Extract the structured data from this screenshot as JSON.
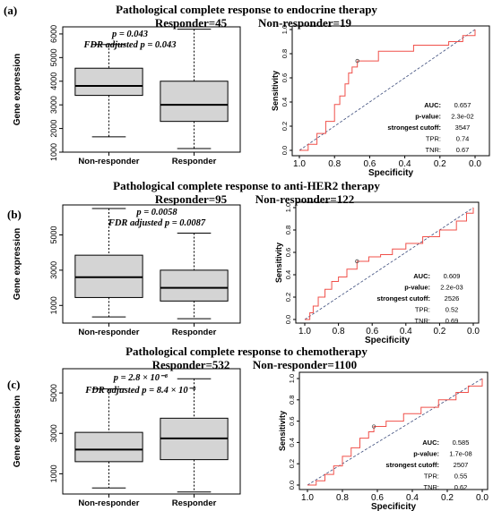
{
  "chart_data": [
    {
      "panel": "(a)",
      "title": "Pathological complete response to endocrine therapy",
      "subtitle_left": "Responder=45",
      "subtitle_right": "Non-responder=19",
      "boxplot": {
        "type": "box",
        "ylabel": "Gene expression",
        "categories": [
          "Non-responder",
          "Responder"
        ],
        "yticks": [
          1000,
          2000,
          3000,
          4000,
          5000,
          6000
        ],
        "ylim": [
          1000,
          6300
        ],
        "boxes": [
          {
            "min": 1650,
            "q1": 3400,
            "median": 3800,
            "q3": 4550,
            "max": 5550
          },
          {
            "min": 1150,
            "q1": 2300,
            "median": 3000,
            "q3": 4000,
            "max": 6200
          }
        ],
        "annotation_p": "p = 0.043",
        "annotation_fdr": "FDR adjusted p = 0.043"
      },
      "roc": {
        "type": "line",
        "xlabel": "Specificity",
        "ylabel": "Sensitivity",
        "xticks": [
          "1.0",
          "0.8",
          "0.6",
          "0.4",
          "0.2",
          "0.0"
        ],
        "yticks": [
          "0.0",
          "0.2",
          "0.4",
          "0.6",
          "0.8",
          "1.0"
        ],
        "xlim": [
          1.0,
          0.0
        ],
        "ylim": [
          0.0,
          1.0
        ],
        "curve": [
          [
            1.0,
            0.0
          ],
          [
            0.95,
            0.05
          ],
          [
            0.9,
            0.14
          ],
          [
            0.85,
            0.24
          ],
          [
            0.8,
            0.38
          ],
          [
            0.77,
            0.45
          ],
          [
            0.74,
            0.55
          ],
          [
            0.72,
            0.64
          ],
          [
            0.7,
            0.69
          ],
          [
            0.67,
            0.74
          ],
          [
            0.6,
            0.74
          ],
          [
            0.55,
            0.82
          ],
          [
            0.45,
            0.82
          ],
          [
            0.35,
            0.87
          ],
          [
            0.25,
            0.87
          ],
          [
            0.15,
            0.9
          ],
          [
            0.07,
            0.95
          ],
          [
            0.0,
            1.0
          ]
        ],
        "point": [
          0.67,
          0.74
        ],
        "stats": [
          {
            "label": "AUC:",
            "value": "0.657"
          },
          {
            "label": "p-value:",
            "value": "2.3e-02"
          },
          {
            "label": "strongest cutoff:",
            "value": "3547"
          },
          {
            "label": "TPR:",
            "value": "0.74"
          },
          {
            "label": "TNR:",
            "value": "0.67"
          }
        ]
      }
    },
    {
      "panel": "(b)",
      "title": "Pathological complete response to anti-HER2 therapy",
      "subtitle_left": "Responder=95",
      "subtitle_right": "Non-responder=122",
      "boxplot": {
        "type": "box",
        "ylabel": "Gene expression",
        "categories": [
          "Non-responder",
          "Responder"
        ],
        "yticks": [
          1000,
          3000,
          5000
        ],
        "ylim": [
          0,
          6700
        ],
        "boxes": [
          {
            "min": 350,
            "q1": 1450,
            "median": 2600,
            "q3": 3850,
            "max": 6500
          },
          {
            "min": 250,
            "q1": 1250,
            "median": 2000,
            "q3": 3000,
            "max": 5100
          }
        ],
        "annotation_p": "p = 0.0058",
        "annotation_fdr": "FDR adjusted p = 0.0087"
      },
      "roc": {
        "type": "line",
        "xlabel": "Specificity",
        "ylabel": "Sensitivity",
        "xticks": [
          "1.0",
          "0.8",
          "0.6",
          "0.4",
          "0.2",
          "0.0"
        ],
        "yticks": [
          "0.0",
          "0.2",
          "0.4",
          "0.6",
          "0.8",
          "1.0"
        ],
        "xlim": [
          1.0,
          0.0
        ],
        "ylim": [
          0.0,
          1.0
        ],
        "curve": [
          [
            1.0,
            0.0
          ],
          [
            0.97,
            0.06
          ],
          [
            0.95,
            0.12
          ],
          [
            0.92,
            0.2
          ],
          [
            0.88,
            0.27
          ],
          [
            0.84,
            0.34
          ],
          [
            0.8,
            0.38
          ],
          [
            0.75,
            0.45
          ],
          [
            0.69,
            0.52
          ],
          [
            0.62,
            0.56
          ],
          [
            0.55,
            0.58
          ],
          [
            0.48,
            0.63
          ],
          [
            0.4,
            0.68
          ],
          [
            0.3,
            0.74
          ],
          [
            0.2,
            0.8
          ],
          [
            0.1,
            0.88
          ],
          [
            0.04,
            0.95
          ],
          [
            0.0,
            1.0
          ]
        ],
        "point": [
          0.69,
          0.52
        ],
        "stats": [
          {
            "label": "AUC:",
            "value": "0.609"
          },
          {
            "label": "p-value:",
            "value": "2.2e-03"
          },
          {
            "label": "strongest cutoff:",
            "value": "2526"
          },
          {
            "label": "TPR:",
            "value": "0.52"
          },
          {
            "label": "TNR:",
            "value": "0.69"
          }
        ]
      }
    },
    {
      "panel": "(c)",
      "title": "Pathological complete response to chemotherapy",
      "subtitle_left": "Responder=532",
      "subtitle_right": "Non-responder=1100",
      "boxplot": {
        "type": "box",
        "ylabel": "Gene expression",
        "categories": [
          "Non-responder",
          "Responder"
        ],
        "yticks": [
          1000,
          3000,
          5000
        ],
        "ylim": [
          0,
          6200
        ],
        "boxes": [
          {
            "min": 300,
            "q1": 1600,
            "median": 2200,
            "q3": 3050,
            "max": 5200
          },
          {
            "min": 100,
            "q1": 1700,
            "median": 2750,
            "q3": 3750,
            "max": 5700
          }
        ],
        "annotation_p": "p = 2.8 × 10⁻⁸",
        "annotation_fdr": "FDR adjusted p = 8.4 × 10⁻⁸"
      },
      "roc": {
        "type": "line",
        "xlabel": "Specificity",
        "ylabel": "Sensitivity",
        "xticks": [
          "1.0",
          "0.8",
          "0.6",
          "0.4",
          "0.2",
          "0.0"
        ],
        "yticks": [
          "0.0",
          "0.2",
          "0.4",
          "0.6",
          "0.8",
          "1.0"
        ],
        "xlim": [
          1.0,
          0.0
        ],
        "ylim": [
          0.0,
          1.0
        ],
        "curve": [
          [
            1.0,
            0.0
          ],
          [
            0.95,
            0.04
          ],
          [
            0.9,
            0.1
          ],
          [
            0.85,
            0.18
          ],
          [
            0.8,
            0.27
          ],
          [
            0.75,
            0.35
          ],
          [
            0.7,
            0.44
          ],
          [
            0.65,
            0.5
          ],
          [
            0.62,
            0.55
          ],
          [
            0.55,
            0.6
          ],
          [
            0.45,
            0.67
          ],
          [
            0.35,
            0.73
          ],
          [
            0.25,
            0.8
          ],
          [
            0.15,
            0.87
          ],
          [
            0.08,
            0.93
          ],
          [
            0.0,
            1.0
          ]
        ],
        "point": [
          0.62,
          0.55
        ],
        "stats": [
          {
            "label": "AUC:",
            "value": "0.585"
          },
          {
            "label": "p-value:",
            "value": "1.7e-08"
          },
          {
            "label": "strongest cutoff:",
            "value": "2507"
          },
          {
            "label": "TPR:",
            "value": "0.55"
          },
          {
            "label": "TNR:",
            "value": "0.62"
          }
        ]
      }
    }
  ],
  "colors": {
    "box_fill": "#d4d4d4",
    "roc_curve": "#f0504a",
    "diagonal": "#3a4a7a",
    "axis": "#000000"
  }
}
